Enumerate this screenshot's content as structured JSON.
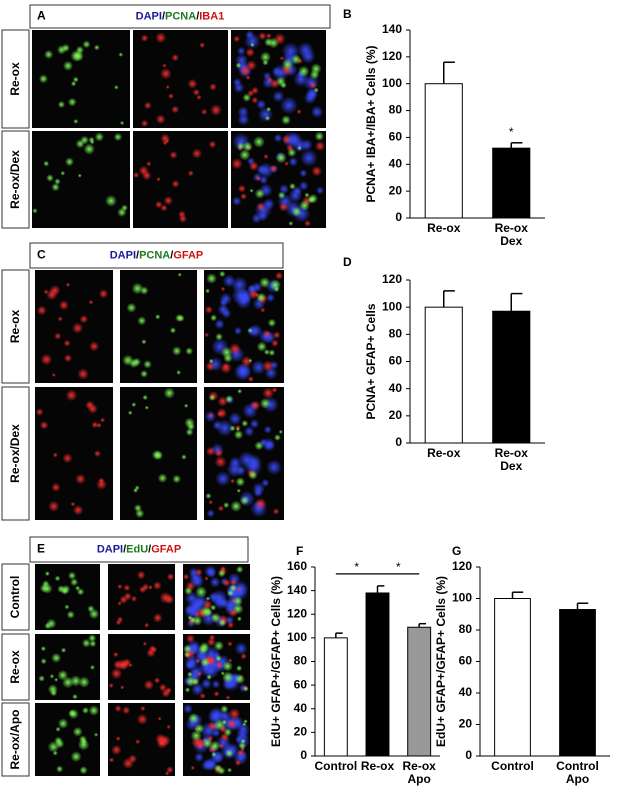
{
  "chart_data": [
    {
      "type": "bar",
      "panel": "B",
      "ylabel": "PCNA+ IBA+/IBA+ Cells (%)",
      "categories": [
        "Re-ox",
        "Re-ox\nDex"
      ],
      "values": [
        100,
        52
      ],
      "errors": [
        16,
        4
      ],
      "colors": [
        "#ffffff",
        "#000000"
      ],
      "ylim": [
        0,
        140
      ],
      "yticks": [
        0,
        20,
        40,
        60,
        80,
        100,
        120,
        140
      ],
      "significance": [
        {
          "label": "*",
          "category": 1
        }
      ]
    },
    {
      "type": "bar",
      "panel": "D",
      "ylabel": "PCNA+ GFAP+ Cells",
      "categories": [
        "Re-ox",
        "Re-ox\nDex"
      ],
      "values": [
        100,
        97
      ],
      "errors": [
        12,
        13
      ],
      "colors": [
        "#ffffff",
        "#000000"
      ],
      "ylim": [
        0,
        120
      ],
      "yticks": [
        0,
        20,
        40,
        60,
        80,
        100,
        120
      ]
    },
    {
      "type": "bar",
      "panel": "F",
      "ylabel": "EdU+ GFAP+/GFAP+ Cells (%)",
      "categories": [
        "Control",
        "Re-ox",
        "Re-ox\nApo"
      ],
      "values": [
        100,
        138,
        109
      ],
      "errors": [
        4,
        6,
        3
      ],
      "colors": [
        "#ffffff",
        "#000000",
        "#999999"
      ],
      "ylim": [
        0,
        160
      ],
      "yticks": [
        0,
        20,
        40,
        60,
        80,
        100,
        120,
        140,
        160
      ],
      "significance": [
        {
          "label": "*",
          "between": [
            0,
            1
          ]
        },
        {
          "label": "*",
          "between": [
            1,
            2
          ]
        }
      ]
    },
    {
      "type": "bar",
      "panel": "G",
      "ylabel": "EdU+ GFAP+/GFAP+ Cells (%)",
      "categories": [
        "Control",
        "Control\nApo"
      ],
      "values": [
        100,
        93
      ],
      "errors": [
        4,
        4
      ],
      "colors": [
        "#ffffff",
        "#000000"
      ],
      "ylim": [
        0,
        120
      ],
      "yticks": [
        0,
        20,
        40,
        60,
        80,
        100,
        120
      ]
    }
  ],
  "panels": [
    {
      "panel": "A",
      "stains": [
        {
          "text": "DAPI",
          "color": "#1a1a9a"
        },
        {
          "text": "/",
          "color": "#000000"
        },
        {
          "text": "PCNA",
          "color": "#1d7a1d"
        },
        {
          "text": "/",
          "color": "#000000"
        },
        {
          "text": "IBA1",
          "color": "#cc1111"
        }
      ],
      "rows": [
        "Re-ox",
        "Re-ox/Dex"
      ]
    },
    {
      "panel": "C",
      "stains": [
        {
          "text": "DAPI",
          "color": "#1a1a9a"
        },
        {
          "text": "/",
          "color": "#000000"
        },
        {
          "text": "PCNA",
          "color": "#1d7a1d"
        },
        {
          "text": "/",
          "color": "#000000"
        },
        {
          "text": "GFAP",
          "color": "#cc1111"
        }
      ],
      "rows": [
        "Re-ox",
        "Re-ox/Dex"
      ]
    },
    {
      "panel": "E",
      "stains": [
        {
          "text": "DAPI",
          "color": "#1a1a9a"
        },
        {
          "text": "/",
          "color": "#000000"
        },
        {
          "text": "EdU",
          "color": "#1d7a1d"
        },
        {
          "text": "/",
          "color": "#000000"
        },
        {
          "text": "GFAP",
          "color": "#cc1111"
        }
      ],
      "rows": [
        "Control",
        "Re-ox",
        "Re-ox/Apo"
      ]
    }
  ]
}
